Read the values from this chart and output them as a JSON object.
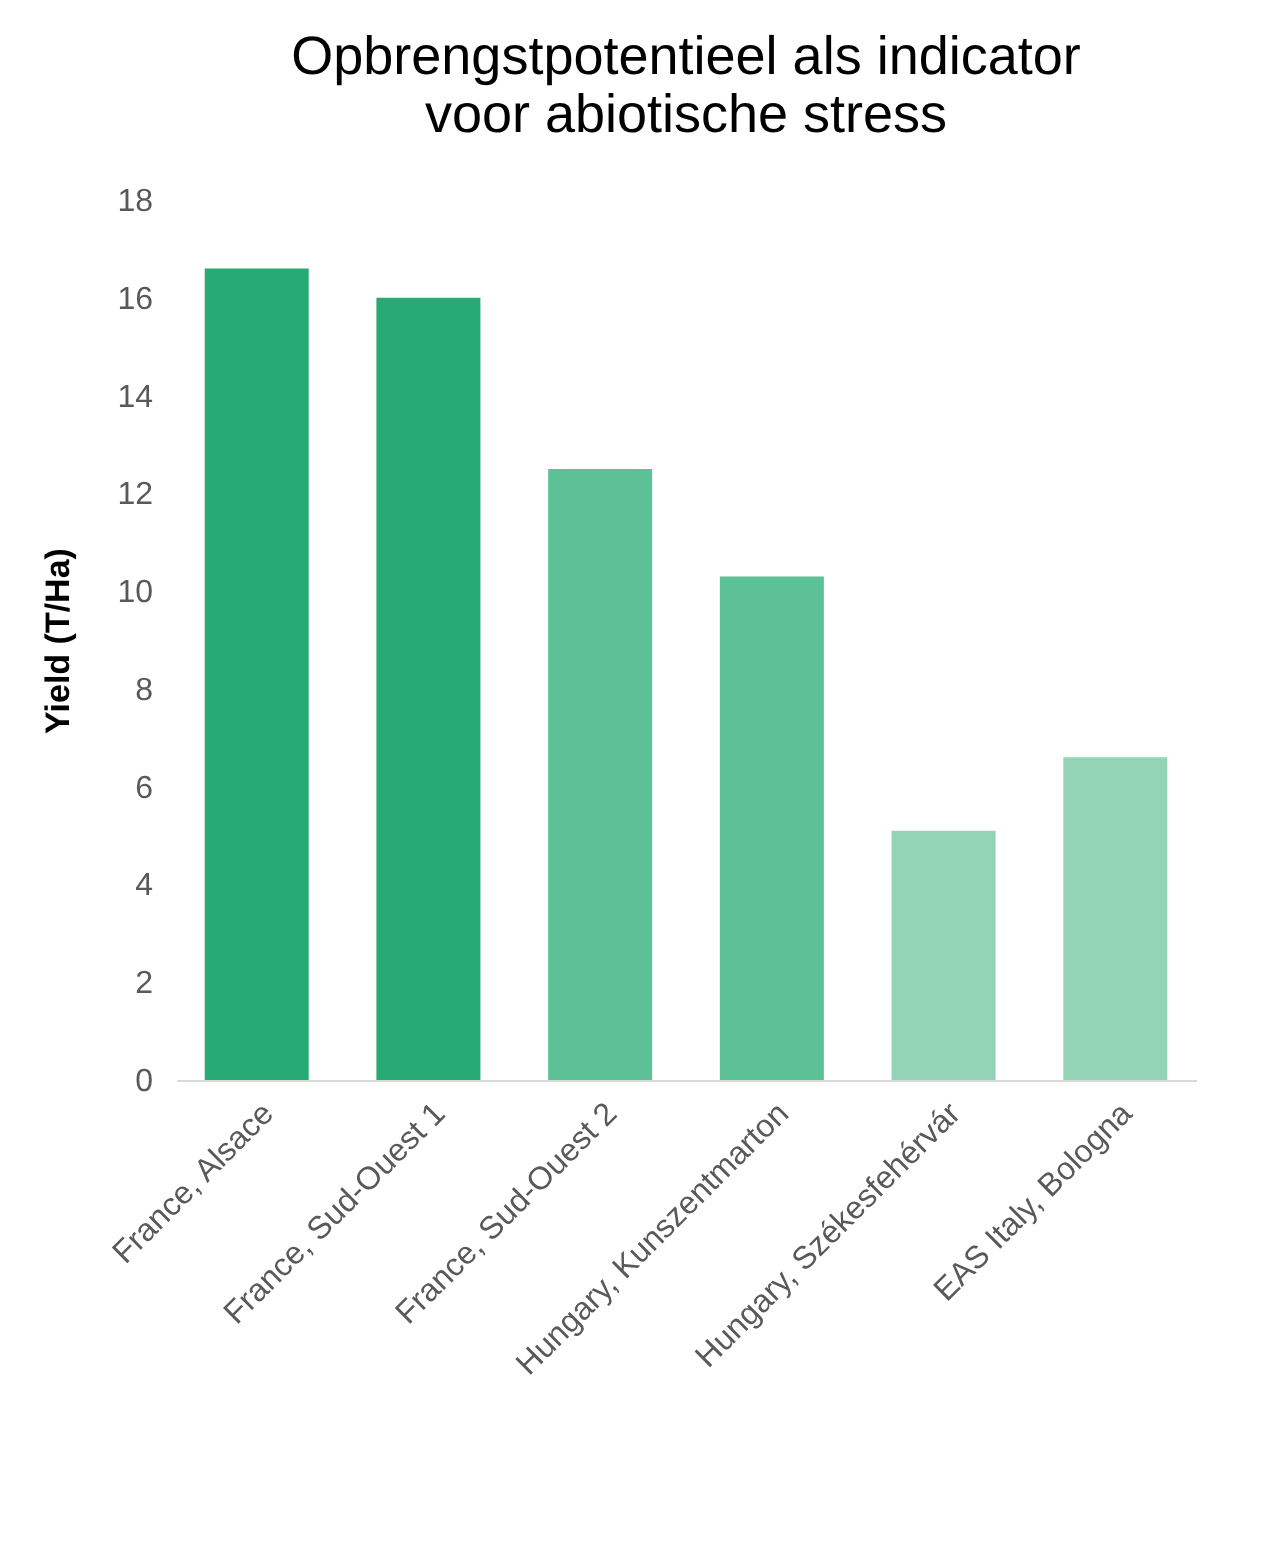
{
  "chart_data": {
    "type": "bar",
    "title": [
      "Opbrengstpotentieel als indicator",
      "voor abiotische stress"
    ],
    "ylabel": "Yield (T/Ha)",
    "categories": [
      "France, Alsace",
      "France, Sud-Ouest 1",
      "France, Sud-Ouest 2",
      "Hungary, Kunszentmarton",
      "Hungary, Székesfehérvár",
      "EAS Italy, Bologna"
    ],
    "values": [
      16.6,
      16.0,
      12.5,
      10.3,
      5.1,
      6.6
    ],
    "colors": [
      "#27aa73",
      "#27aa73",
      "#5cc194",
      "#5cc194",
      "#93d4b6",
      "#93d4b6"
    ],
    "ylim": [
      0,
      18
    ],
    "yticks": [
      0,
      2,
      4,
      6,
      8,
      10,
      12,
      14,
      16,
      18
    ],
    "grid": false,
    "legend": false
  }
}
